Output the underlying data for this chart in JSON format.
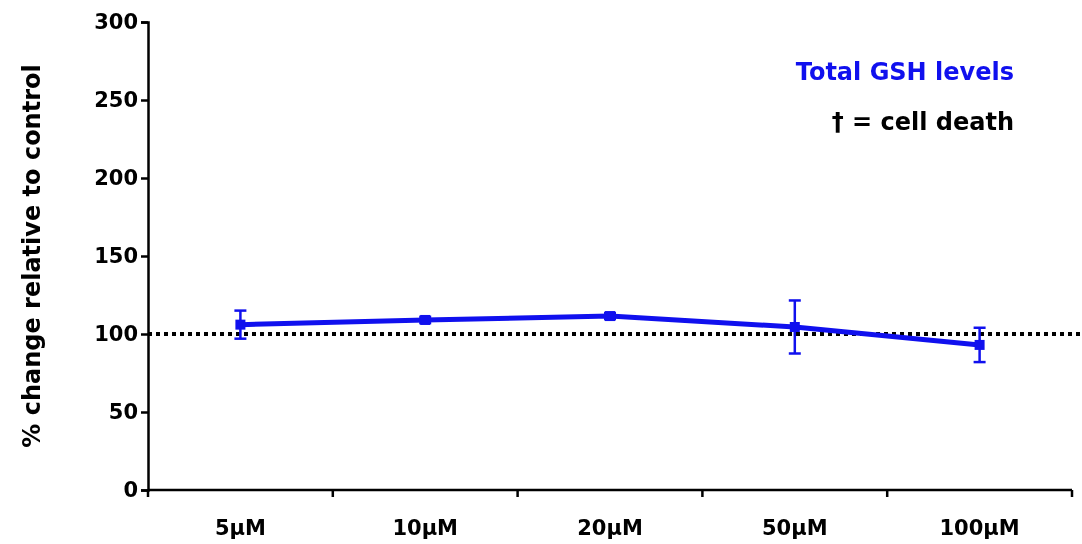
{
  "chart_data": {
    "type": "line",
    "ylabel": "% change relative to control",
    "categories": [
      "5µM",
      "10µM",
      "20µM",
      "50µM",
      "100µM"
    ],
    "series": [
      {
        "name": "Total GSH levels",
        "color": "#1010ee",
        "values": [
          106,
          109,
          111.5,
          104.5,
          93
        ],
        "errors": [
          9,
          2,
          2,
          17,
          11
        ]
      }
    ],
    "ylim": [
      0,
      300
    ],
    "yticks": [
      0,
      50,
      100,
      150,
      200,
      250,
      300
    ],
    "ref_lines": [
      {
        "axis": "y",
        "value": 100,
        "color": "#000000",
        "line_style": "dotted"
      }
    ],
    "annotations": [
      "† = cell death"
    ],
    "legend": "top right",
    "marker": "square",
    "line_style": "solid",
    "grid": false
  }
}
